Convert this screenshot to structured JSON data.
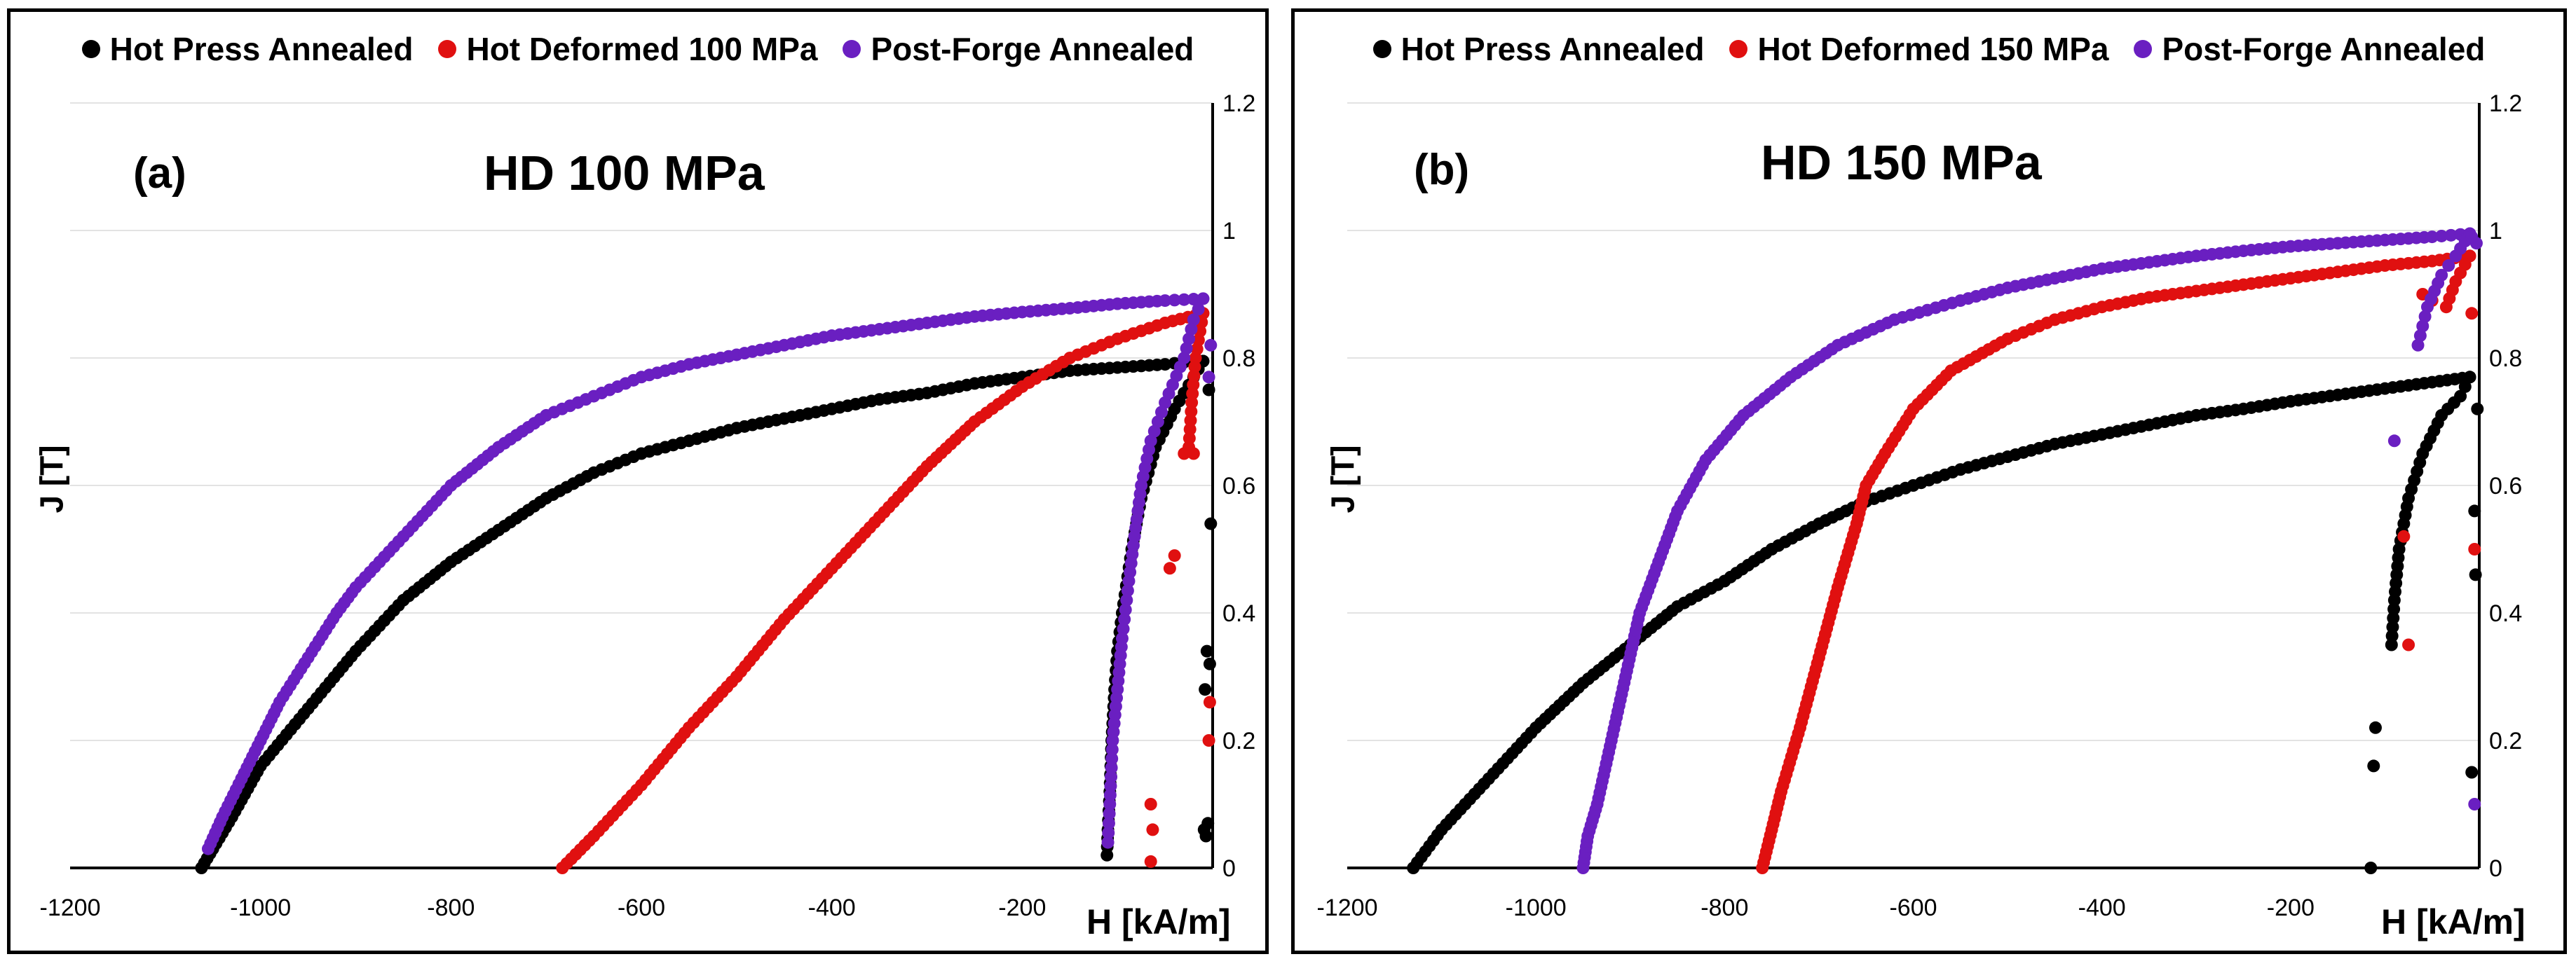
{
  "chart_data": [
    {
      "type": "scatter",
      "panel_label": "(a)",
      "title": "HD 100 MPa",
      "xlabel": "H [kA/m]",
      "ylabel": "J [T]",
      "xlim": [
        -1200,
        0
      ],
      "ylim": [
        0,
        1.2
      ],
      "x_ticks": [
        -1200,
        -1000,
        -800,
        -600,
        -400,
        -200
      ],
      "y_ticks": [
        0,
        0.2,
        0.4,
        0.6,
        0.8,
        1,
        1.2
      ],
      "grid": true,
      "legend_position": "top",
      "series": [
        {
          "name": "Hot Press Annealed",
          "color": "#000000",
          "points": [
            [
              -1062,
              0
            ],
            [
              -1050,
              0.03
            ],
            [
              -1030,
              0.08
            ],
            [
              -1000,
              0.16
            ],
            [
              -950,
              0.25
            ],
            [
              -900,
              0.34
            ],
            [
              -850,
              0.42
            ],
            [
              -800,
              0.48
            ],
            [
              -750,
              0.53
            ],
            [
              -700,
              0.58
            ],
            [
              -650,
              0.62
            ],
            [
              -600,
              0.65
            ],
            [
              -550,
              0.67
            ],
            [
              -500,
              0.69
            ],
            [
              -450,
              0.705
            ],
            [
              -400,
              0.72
            ],
            [
              -350,
              0.735
            ],
            [
              -300,
              0.745
            ],
            [
              -250,
              0.76
            ],
            [
              -200,
              0.77
            ],
            [
              -150,
              0.78
            ],
            [
              -100,
              0.785
            ],
            [
              -50,
              0.79
            ],
            [
              -20,
              0.795
            ],
            [
              -10,
              0.795
            ]
          ],
          "return": [
            [
              -10,
              0.795
            ],
            [
              -20,
              0.77
            ],
            [
              -40,
              0.72
            ],
            [
              -60,
              0.66
            ],
            [
              -75,
              0.58
            ],
            [
              -85,
              0.5
            ],
            [
              -95,
              0.4
            ],
            [
              -100,
              0.34
            ],
            [
              -103,
              0.28
            ],
            [
              -106,
              0.2
            ],
            [
              -108,
              0.12
            ],
            [
              -110,
              0.06
            ],
            [
              -111,
              0.02
            ]
          ],
          "scatter": [
            [
              -4,
              0.75
            ],
            [
              -2,
              0.54
            ],
            [
              -6,
              0.34
            ],
            [
              -3,
              0.32
            ],
            [
              -8,
              0.28
            ],
            [
              -5,
              0.07
            ],
            [
              -7,
              0.05
            ],
            [
              -9,
              0.06
            ]
          ]
        },
        {
          "name": "Hot Deformed 100 MPa",
          "color": "#e01010",
          "points": [
            [
              -683,
              0
            ],
            [
              -650,
              0.05
            ],
            [
              -600,
              0.13
            ],
            [
              -550,
              0.22
            ],
            [
              -500,
              0.3
            ],
            [
              -450,
              0.39
            ],
            [
              -400,
              0.47
            ],
            [
              -350,
              0.55
            ],
            [
              -300,
              0.63
            ],
            [
              -250,
              0.7
            ],
            [
              -200,
              0.755
            ],
            [
              -150,
              0.8
            ],
            [
              -100,
              0.83
            ],
            [
              -50,
              0.855
            ],
            [
              -10,
              0.87
            ]
          ],
          "return": [
            [
              -10,
              0.87
            ],
            [
              -18,
              0.8
            ],
            [
              -22,
              0.73
            ],
            [
              -25,
              0.66
            ]
          ],
          "scatter": [
            [
              -45,
              0.47
            ],
            [
              -40,
              0.49
            ],
            [
              -30,
              0.65
            ],
            [
              -20,
              0.65
            ],
            [
              -4,
              0.2
            ],
            [
              -3,
              0.26
            ],
            [
              -65,
              0.1
            ],
            [
              -63,
              0.06
            ],
            [
              -65,
              0.01
            ]
          ]
        },
        {
          "name": "Post-Forge Annealed",
          "color": "#6a1fc1",
          "points": [
            [
              -1055,
              0.03
            ],
            [
              -1040,
              0.08
            ],
            [
              -1020,
              0.14
            ],
            [
              -1000,
              0.2
            ],
            [
              -980,
              0.26
            ],
            [
              -950,
              0.33
            ],
            [
              -920,
              0.4
            ],
            [
              -900,
              0.44
            ],
            [
              -850,
              0.52
            ],
            [
              -800,
              0.6
            ],
            [
              -750,
              0.66
            ],
            [
              -700,
              0.71
            ],
            [
              -650,
              0.74
            ],
            [
              -600,
              0.77
            ],
            [
              -550,
              0.79
            ],
            [
              -500,
              0.805
            ],
            [
              -450,
              0.82
            ],
            [
              -400,
              0.835
            ],
            [
              -350,
              0.845
            ],
            [
              -300,
              0.855
            ],
            [
              -250,
              0.865
            ],
            [
              -200,
              0.872
            ],
            [
              -150,
              0.878
            ],
            [
              -100,
              0.885
            ],
            [
              -50,
              0.89
            ],
            [
              -10,
              0.893
            ]
          ],
          "return": [
            [
              -10,
              0.893
            ],
            [
              -20,
              0.86
            ],
            [
              -30,
              0.8
            ],
            [
              -50,
              0.73
            ],
            [
              -65,
              0.67
            ],
            [
              -75,
              0.6
            ],
            [
              -82,
              0.52
            ],
            [
              -88,
              0.45
            ],
            [
              -95,
              0.36
            ],
            [
              -100,
              0.28
            ],
            [
              -105,
              0.2
            ],
            [
              -108,
              0.1
            ],
            [
              -110,
              0.04
            ]
          ],
          "scatter": [
            [
              -2,
              0.82
            ],
            [
              -4,
              0.77
            ]
          ]
        }
      ]
    },
    {
      "type": "scatter",
      "panel_label": "(b)",
      "title": "HD 150 MPa",
      "xlabel": "H [kA/m]",
      "ylabel": "J [T]",
      "xlim": [
        -1200,
        0
      ],
      "ylim": [
        0,
        1.2
      ],
      "x_ticks": [
        -1200,
        -1000,
        -800,
        -600,
        -400,
        -200
      ],
      "y_ticks": [
        0,
        0.2,
        0.4,
        0.6,
        0.8,
        1,
        1.2
      ],
      "grid": true,
      "legend_position": "top",
      "series": [
        {
          "name": "Hot Press Annealed",
          "color": "#000000",
          "points": [
            [
              -1130,
              0
            ],
            [
              -1100,
              0.06
            ],
            [
              -1050,
              0.14
            ],
            [
              -1000,
              0.22
            ],
            [
              -950,
              0.29
            ],
            [
              -900,
              0.35
            ],
            [
              -850,
              0.41
            ],
            [
              -800,
              0.45
            ],
            [
              -750,
              0.5
            ],
            [
              -700,
              0.54
            ],
            [
              -650,
              0.575
            ],
            [
              -600,
              0.6
            ],
            [
              -550,
              0.625
            ],
            [
              -500,
              0.645
            ],
            [
              -450,
              0.665
            ],
            [
              -400,
              0.68
            ],
            [
              -350,
              0.695
            ],
            [
              -300,
              0.71
            ],
            [
              -250,
              0.72
            ],
            [
              -200,
              0.732
            ],
            [
              -150,
              0.742
            ],
            [
              -100,
              0.752
            ],
            [
              -50,
              0.762
            ],
            [
              -10,
              0.77
            ]
          ],
          "return": [
            [
              -10,
              0.77
            ],
            [
              -20,
              0.74
            ],
            [
              -40,
              0.71
            ],
            [
              -60,
              0.65
            ],
            [
              -75,
              0.58
            ],
            [
              -85,
              0.5
            ],
            [
              -90,
              0.42
            ],
            [
              -93,
              0.35
            ]
          ],
          "scatter": [
            [
              -110,
              0.22
            ],
            [
              -112,
              0.16
            ],
            [
              -115,
              0.0
            ],
            [
              -5,
              0.56
            ],
            [
              -4,
              0.46
            ],
            [
              -8,
              0.15
            ],
            [
              -2,
              0.72
            ]
          ]
        },
        {
          "name": "Hot Deformed 150 MPa",
          "color": "#e01010",
          "points": [
            [
              -760,
              0
            ],
            [
              -750,
              0.06
            ],
            [
              -740,
              0.12
            ],
            [
              -720,
              0.22
            ],
            [
              -700,
              0.33
            ],
            [
              -680,
              0.44
            ],
            [
              -660,
              0.54
            ],
            [
              -650,
              0.6
            ],
            [
              -630,
              0.65
            ],
            [
              -600,
              0.72
            ],
            [
              -560,
              0.78
            ],
            [
              -500,
              0.83
            ],
            [
              -450,
              0.86
            ],
            [
              -400,
              0.88
            ],
            [
              -350,
              0.895
            ],
            [
              -300,
              0.905
            ],
            [
              -250,
              0.915
            ],
            [
              -200,
              0.925
            ],
            [
              -150,
              0.935
            ],
            [
              -100,
              0.945
            ],
            [
              -50,
              0.952
            ],
            [
              -10,
              0.96
            ]
          ],
          "return": [
            [
              -10,
              0.96
            ],
            [
              -25,
              0.92
            ],
            [
              -35,
              0.88
            ]
          ],
          "scatter": [
            [
              -80,
              0.52
            ],
            [
              -75,
              0.35
            ],
            [
              -60,
              0.9
            ],
            [
              -50,
              0.89
            ],
            [
              -5,
              0.5
            ],
            [
              -8,
              0.87
            ]
          ]
        },
        {
          "name": "Post-Forge Annealed",
          "color": "#6a1fc1",
          "points": [
            [
              -950,
              0
            ],
            [
              -945,
              0.05
            ],
            [
              -935,
              0.1
            ],
            [
              -920,
              0.2
            ],
            [
              -905,
              0.3
            ],
            [
              -890,
              0.4
            ],
            [
              -870,
              0.48
            ],
            [
              -850,
              0.56
            ],
            [
              -820,
              0.64
            ],
            [
              -780,
              0.71
            ],
            [
              -730,
              0.77
            ],
            [
              -680,
              0.82
            ],
            [
              -620,
              0.86
            ],
            [
              -550,
              0.89
            ],
            [
              -500,
              0.91
            ],
            [
              -450,
              0.925
            ],
            [
              -400,
              0.94
            ],
            [
              -350,
              0.95
            ],
            [
              -300,
              0.96
            ],
            [
              -250,
              0.968
            ],
            [
              -200,
              0.975
            ],
            [
              -150,
              0.98
            ],
            [
              -100,
              0.985
            ],
            [
              -50,
              0.99
            ],
            [
              -10,
              0.995
            ]
          ],
          "return": [
            [
              -10,
              0.995
            ],
            [
              -25,
              0.96
            ],
            [
              -40,
              0.93
            ],
            [
              -55,
              0.88
            ],
            [
              -65,
              0.82
            ]
          ],
          "scatter": [
            [
              -90,
              0.67
            ],
            [
              -5,
              0.1
            ],
            [
              -3,
              0.98
            ],
            [
              -8,
              0.99
            ]
          ]
        }
      ]
    }
  ]
}
